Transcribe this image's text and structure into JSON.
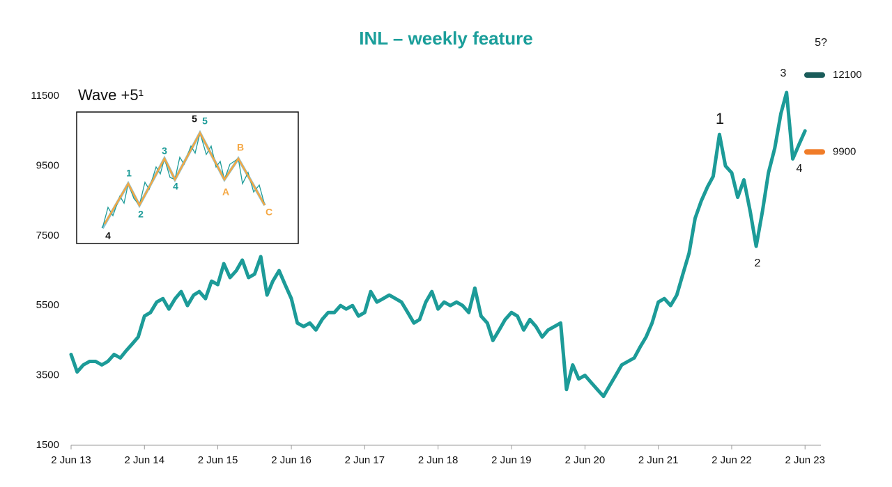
{
  "chart_data": {
    "type": "line",
    "title": "INL – weekly feature",
    "color": "#1c9b98",
    "x": [
      "2013-06-02",
      "2013-07-02",
      "2013-08-02",
      "2013-09-02",
      "2013-10-02",
      "2013-11-02",
      "2013-12-02",
      "2014-01-02",
      "2014-02-02",
      "2014-03-02",
      "2014-04-02",
      "2014-05-02",
      "2014-06-02",
      "2014-07-02",
      "2014-08-02",
      "2014-09-02",
      "2014-10-02",
      "2014-11-02",
      "2014-12-02",
      "2015-01-02",
      "2015-02-02",
      "2015-03-02",
      "2015-04-02",
      "2015-05-02",
      "2015-06-02",
      "2015-07-02",
      "2015-08-02",
      "2015-09-02",
      "2015-10-02",
      "2015-11-02",
      "2015-12-02",
      "2016-01-02",
      "2016-02-02",
      "2016-03-02",
      "2016-04-02",
      "2016-05-02",
      "2016-06-02",
      "2016-07-02",
      "2016-08-02",
      "2016-09-02",
      "2016-10-02",
      "2016-11-02",
      "2016-12-02",
      "2017-01-02",
      "2017-02-02",
      "2017-03-02",
      "2017-04-02",
      "2017-05-02",
      "2017-06-02",
      "2017-07-02",
      "2017-08-02",
      "2017-09-02",
      "2017-10-02",
      "2017-11-02",
      "2017-12-02",
      "2018-01-02",
      "2018-02-02",
      "2018-03-02",
      "2018-04-02",
      "2018-05-02",
      "2018-06-02",
      "2018-07-02",
      "2018-08-02",
      "2018-09-02",
      "2018-10-02",
      "2018-11-02",
      "2018-12-02",
      "2019-01-02",
      "2019-02-02",
      "2019-03-02",
      "2019-04-02",
      "2019-05-02",
      "2019-06-02",
      "2019-07-02",
      "2019-08-02",
      "2019-09-02",
      "2019-10-02",
      "2019-11-02",
      "2019-12-02",
      "2020-01-02",
      "2020-02-02",
      "2020-03-02",
      "2020-04-02",
      "2020-05-02",
      "2020-06-02",
      "2020-07-02",
      "2020-08-02",
      "2020-09-02",
      "2020-10-02",
      "2020-11-02",
      "2020-12-02",
      "2021-01-02",
      "2021-02-02",
      "2021-03-02",
      "2021-04-02",
      "2021-05-02",
      "2021-06-02",
      "2021-07-02",
      "2021-08-02",
      "2021-09-02",
      "2021-10-02",
      "2021-11-02",
      "2021-12-02",
      "2022-01-02",
      "2022-02-02",
      "2022-03-02",
      "2022-04-02",
      "2022-05-02",
      "2022-06-02",
      "2022-07-02",
      "2022-08-02",
      "2022-09-02",
      "2022-10-02",
      "2022-11-02",
      "2022-12-02",
      "2023-01-02",
      "2023-02-02",
      "2023-03-02",
      "2023-04-02",
      "2023-05-02",
      "2023-06-02"
    ],
    "values": [
      4100,
      3600,
      3800,
      3900,
      3900,
      3800,
      3900,
      4100,
      4000,
      4200,
      4400,
      4600,
      5200,
      5300,
      5600,
      5700,
      5400,
      5700,
      5900,
      5500,
      5800,
      5900,
      5700,
      6200,
      6100,
      6700,
      6300,
      6500,
      6800,
      6300,
      6400,
      6900,
      5800,
      6200,
      6500,
      6100,
      5700,
      5000,
      4900,
      5000,
      4800,
      5100,
      5300,
      5300,
      5500,
      5400,
      5500,
      5200,
      5300,
      5900,
      5600,
      5700,
      5800,
      5700,
      5600,
      5300,
      5000,
      5100,
      5600,
      5900,
      5400,
      5600,
      5500,
      5600,
      5500,
      5300,
      6000,
      5200,
      5000,
      4500,
      4800,
      5100,
      5300,
      5200,
      4800,
      5100,
      4900,
      4600,
      4800,
      4900,
      5000,
      3100,
      3800,
      3400,
      3500,
      3300,
      3100,
      2900,
      3200,
      3500,
      3800,
      3900,
      4000,
      4300,
      4600,
      5000,
      5600,
      5700,
      5500,
      5800,
      6400,
      7000,
      8000,
      8500,
      8900,
      9200,
      10400,
      9500,
      9300,
      8600,
      9100,
      8200,
      7200,
      8200,
      9300,
      10000,
      11000,
      11600,
      9700,
      10100,
      10500
    ],
    "xlim": [
      "2013-06-02",
      "2023-08-20"
    ],
    "xticks": [
      {
        "value": "2013-06-02",
        "label": "2 Jun 13"
      },
      {
        "value": "2014-06-02",
        "label": "2 Jun 14"
      },
      {
        "value": "2015-06-02",
        "label": "2 Jun 15"
      },
      {
        "value": "2016-06-02",
        "label": "2 Jun 16"
      },
      {
        "value": "2017-06-02",
        "label": "2 Jun 17"
      },
      {
        "value": "2018-06-02",
        "label": "2 Jun 18"
      },
      {
        "value": "2019-06-02",
        "label": "2 Jun 19"
      },
      {
        "value": "2020-06-02",
        "label": "2 Jun 20"
      },
      {
        "value": "2021-06-02",
        "label": "2 Jun 21"
      },
      {
        "value": "2022-06-02",
        "label": "2 Jun 22"
      },
      {
        "value": "2023-06-02",
        "label": "2 Jun 23"
      }
    ],
    "ylim": [
      1500,
      13500
    ],
    "yticks": [
      1500,
      3500,
      5500,
      7500,
      9500,
      11500
    ],
    "targets": [
      {
        "value": 12100,
        "color": "#1a5c5a"
      },
      {
        "value": 9900,
        "color": "#f07c28"
      }
    ],
    "annotations": [
      "1",
      "2",
      "3",
      "4",
      "5?"
    ],
    "inset": {
      "title": "Wave +5¹",
      "labels": [
        "4",
        "1",
        "2",
        "3",
        "4",
        "5",
        "5",
        "A",
        "B",
        "C"
      ]
    }
  }
}
